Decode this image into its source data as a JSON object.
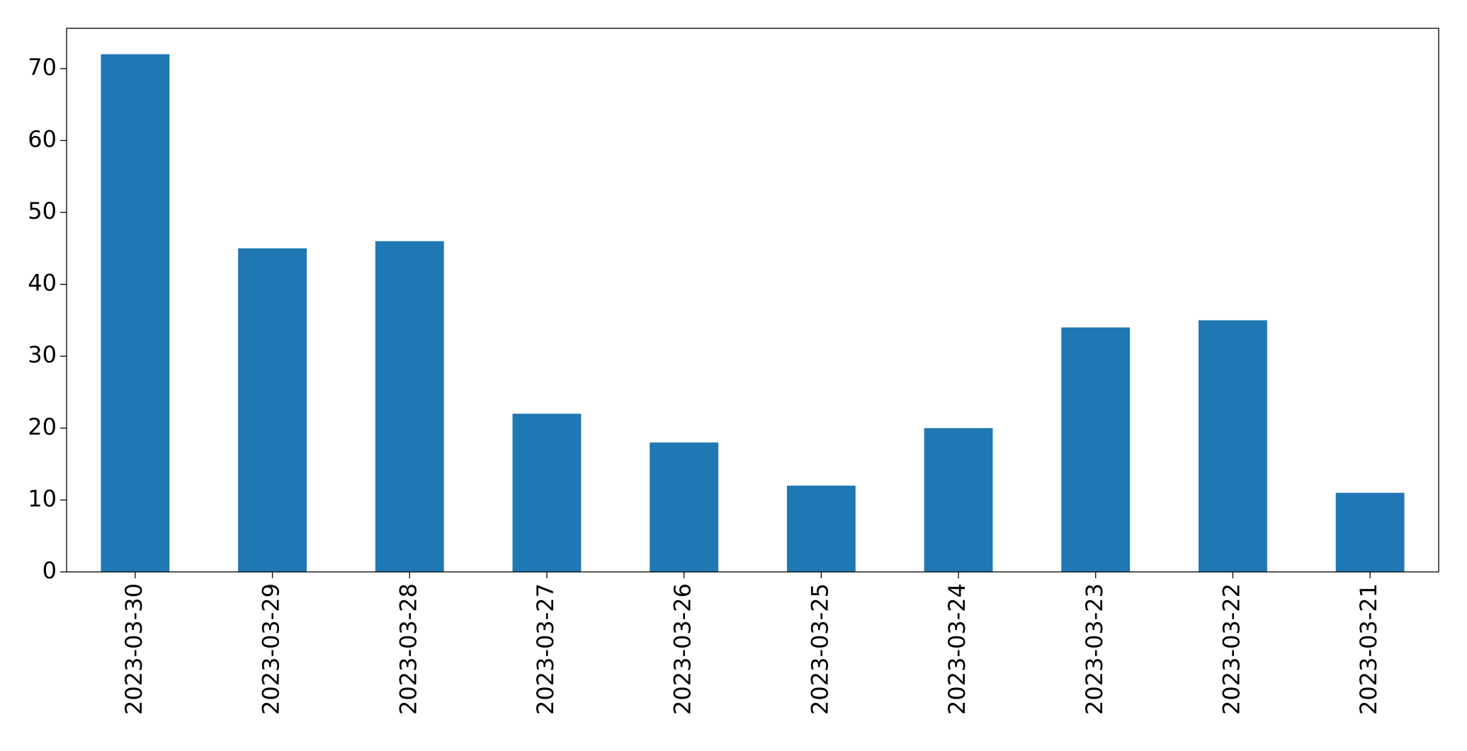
{
  "chart_data": {
    "type": "bar",
    "categories": [
      "2023-03-30",
      "2023-03-29",
      "2023-03-28",
      "2023-03-27",
      "2023-03-26",
      "2023-03-25",
      "2023-03-24",
      "2023-03-23",
      "2023-03-22",
      "2023-03-21"
    ],
    "values": [
      72,
      45,
      46,
      22,
      18,
      12,
      20,
      34,
      35,
      11
    ],
    "color": "#1f77b4",
    "ylim": [
      0,
      75.6
    ],
    "yticks": [
      0,
      10,
      20,
      30,
      40,
      50,
      60,
      70
    ],
    "grid": false
  }
}
